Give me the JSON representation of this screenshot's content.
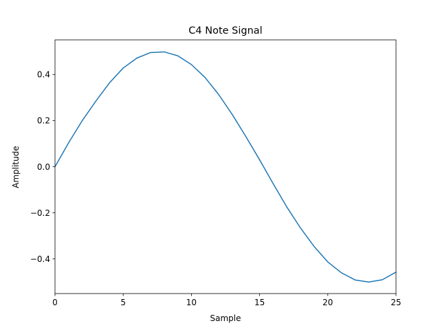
{
  "chart_data": {
    "type": "line",
    "title": "C4 Note Signal",
    "xlabel": "Sample",
    "ylabel": "Amplitude",
    "xlim": [
      0,
      25
    ],
    "ylim": [
      -0.55,
      0.55
    ],
    "xticks": [
      0,
      5,
      10,
      15,
      20,
      25
    ],
    "yticks": [
      -0.4,
      -0.2,
      0.0,
      0.2,
      0.4
    ],
    "xtick_labels": [
      "0",
      "5",
      "10",
      "15",
      "20",
      "25"
    ],
    "ytick_labels": [
      "−0.4",
      "−0.2",
      "0.0",
      "0.2",
      "0.4"
    ],
    "grid": false,
    "line_color": "#1f77b4",
    "series": [
      {
        "x": [
          0,
          1,
          2,
          3,
          4,
          5,
          6,
          7,
          8,
          9,
          10,
          11,
          12,
          13,
          14,
          15,
          16,
          17,
          18,
          19,
          20,
          21,
          22,
          23,
          24,
          25
        ],
        "values": [
          0.0,
          0.104,
          0.2,
          0.285,
          0.364,
          0.428,
          0.471,
          0.495,
          0.498,
          0.481,
          0.443,
          0.387,
          0.313,
          0.226,
          0.13,
          0.03,
          -0.074,
          -0.175,
          -0.266,
          -0.346,
          -0.413,
          -0.46,
          -0.491,
          -0.5,
          -0.49,
          -0.457
        ]
      }
    ]
  }
}
